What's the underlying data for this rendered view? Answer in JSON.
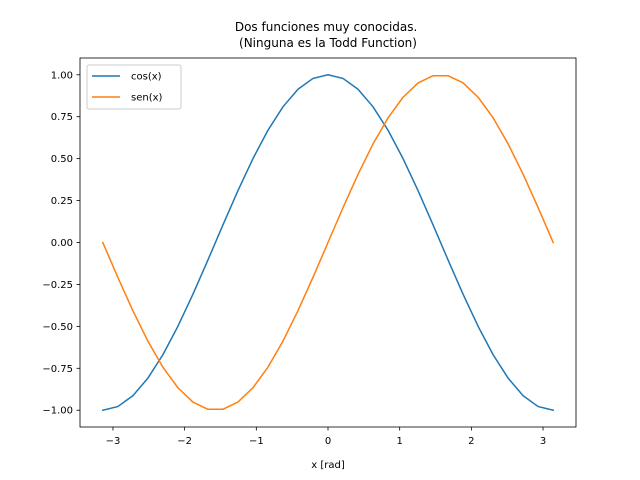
{
  "chart_data": {
    "type": "line",
    "title": "Dos funciones muy conocidas.\n(Ninguna es la Todd Function)",
    "xlabel": "x [rad]",
    "ylabel": "",
    "xlim": [
      -3.46,
      3.46
    ],
    "ylim": [
      -1.1,
      1.1
    ],
    "x_ticks": [
      -3,
      -2,
      -1,
      0,
      1,
      2,
      3
    ],
    "x_tick_labels": [
      "−3",
      "−2",
      "−1",
      "0",
      "1",
      "2",
      "3"
    ],
    "y_ticks": [
      -1.0,
      -0.75,
      -0.5,
      -0.25,
      0.0,
      0.25,
      0.5,
      0.75,
      1.0
    ],
    "y_tick_labels": [
      "−1.00",
      "−0.75",
      "−0.50",
      "−0.25",
      "0.00",
      "0.25",
      "0.50",
      "0.75",
      "1.00"
    ],
    "grid": false,
    "legend_position": "upper-left",
    "series": [
      {
        "name": "cos(x)",
        "color": "#1f77b4",
        "x": [
          -3.1416,
          -2.9322,
          -2.7227,
          -2.5133,
          -2.3038,
          -2.0944,
          -1.885,
          -1.6755,
          -1.4661,
          -1.2566,
          -1.0472,
          -0.8378,
          -0.6283,
          -0.4189,
          -0.2094,
          0.0,
          0.2094,
          0.4189,
          0.6283,
          0.8378,
          1.0472,
          1.2566,
          1.4661,
          1.6755,
          1.885,
          2.0944,
          2.3038,
          2.5133,
          2.7227,
          2.9322,
          3.1416
        ],
        "y": [
          -1.0,
          -0.9781,
          -0.9135,
          -0.809,
          -0.6691,
          -0.5,
          -0.309,
          -0.1045,
          0.1045,
          0.309,
          0.5,
          0.6691,
          0.809,
          0.9135,
          0.9781,
          1.0,
          0.9781,
          0.9135,
          0.809,
          0.6691,
          0.5,
          0.309,
          0.1045,
          -0.1045,
          -0.309,
          -0.5,
          -0.6691,
          -0.809,
          -0.9135,
          -0.9781,
          -1.0
        ]
      },
      {
        "name": "sen(x)",
        "color": "#ff7f0e",
        "x": [
          -3.1416,
          -2.9322,
          -2.7227,
          -2.5133,
          -2.3038,
          -2.0944,
          -1.885,
          -1.6755,
          -1.4661,
          -1.2566,
          -1.0472,
          -0.8378,
          -0.6283,
          -0.4189,
          -0.2094,
          0.0,
          0.2094,
          0.4189,
          0.6283,
          0.8378,
          1.0472,
          1.2566,
          1.4661,
          1.6755,
          1.885,
          2.0944,
          2.3038,
          2.5133,
          2.7227,
          2.9322,
          3.1416
        ],
        "y": [
          0.0,
          -0.2079,
          -0.4067,
          -0.5878,
          -0.7431,
          -0.866,
          -0.9511,
          -0.9945,
          -0.9945,
          -0.9511,
          -0.866,
          -0.7431,
          -0.5878,
          -0.4067,
          -0.2079,
          0.0,
          0.2079,
          0.4067,
          0.5878,
          0.7431,
          0.866,
          0.9511,
          0.9945,
          0.9945,
          0.9511,
          0.866,
          0.7431,
          0.5878,
          0.4067,
          0.2079,
          0.0
        ]
      }
    ]
  }
}
